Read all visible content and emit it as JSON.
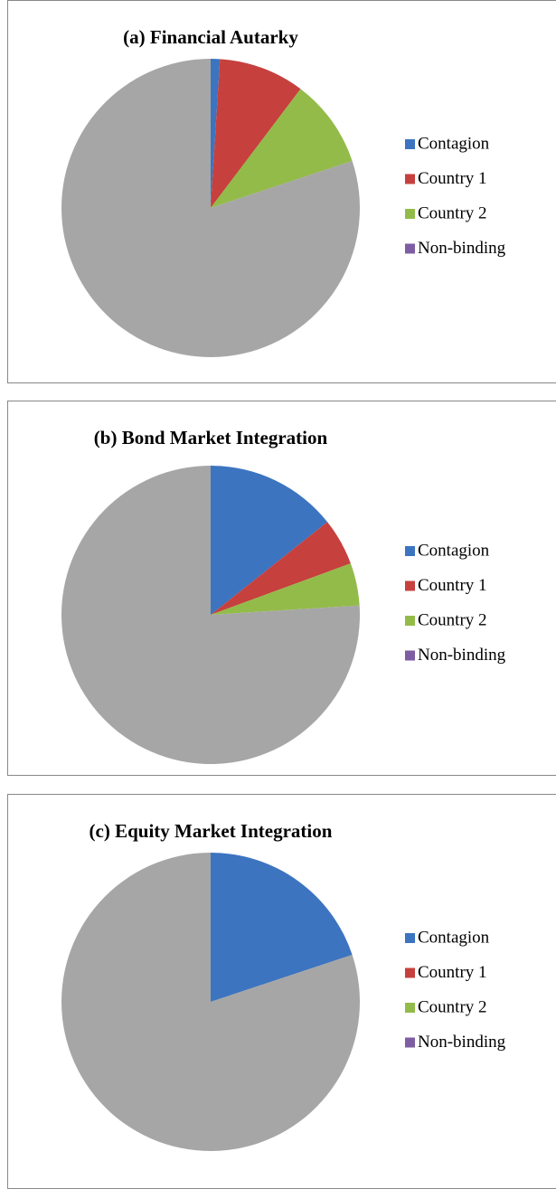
{
  "chart_data": [
    {
      "type": "pie",
      "title": "(a) Financial Autarky",
      "categories": [
        "Contagion",
        "Country 1",
        "Country 2",
        "Non-binding"
      ],
      "values": [
        1,
        9.3,
        9.6,
        80.1
      ],
      "colors": [
        "#3c74c0",
        "#c6403d",
        "#93bb4a",
        "#7e5ea3"
      ],
      "slice_colors": [
        "#3c74c0",
        "#c6403d",
        "#93bb4a",
        "#a6a6a6"
      ],
      "legend": "right"
    },
    {
      "type": "pie",
      "title": "(b) Bond Market Integration",
      "categories": [
        "Contagion",
        "Country 1",
        "Country 2",
        "Non-binding"
      ],
      "values": [
        14.3,
        5.1,
        4.6,
        76
      ],
      "colors": [
        "#3c74c0",
        "#c6403d",
        "#93bb4a",
        "#7e5ea3"
      ],
      "slice_colors": [
        "#3c74c0",
        "#c6403d",
        "#93bb4a",
        "#a6a6a6"
      ],
      "legend": "right"
    },
    {
      "type": "pie",
      "title": "(c) Equity Market Integration",
      "categories": [
        "Contagion",
        "Country 1",
        "Country 2",
        "Non-binding"
      ],
      "values": [
        19.9,
        0,
        0,
        80.1
      ],
      "colors": [
        "#3c74c0",
        "#c6403d",
        "#93bb4a",
        "#7e5ea3"
      ],
      "slice_colors": [
        "#3c74c0",
        "#c6403d",
        "#93bb4a",
        "#a6a6a6"
      ],
      "legend": "right"
    }
  ]
}
